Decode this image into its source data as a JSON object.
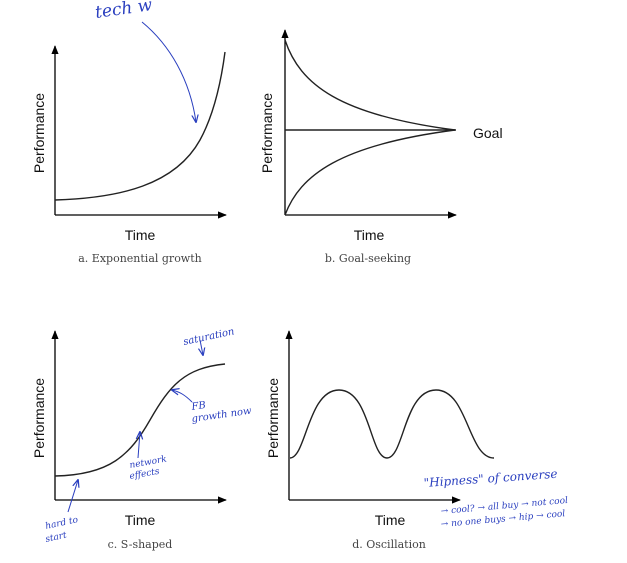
{
  "panels": [
    {
      "ylabel": "Performance",
      "xlabel": "Time",
      "caption": "a. Exponential growth"
    },
    {
      "ylabel": "Performance",
      "xlabel": "Time",
      "caption": "b. Goal-seeking",
      "goal_label": "Goal"
    },
    {
      "ylabel": "Performance",
      "xlabel": "Time",
      "caption": "c. S-shaped"
    },
    {
      "ylabel": "Performance",
      "xlabel": "Time",
      "caption": "d. Oscillation"
    }
  ],
  "annotations": {
    "tech": "tech w",
    "saturation": "saturation",
    "fb_growth": "FB",
    "fb_growth_2": "growth now",
    "network": "network",
    "network_2": "effects",
    "hard_to": "hard to",
    "hard_to_2": "start",
    "hipness": "\"Hipness\" of converse",
    "hip_line1": "→ cool? → all buy → not cool",
    "hip_line2": "→ no one buys → hip → cool"
  },
  "colors": {
    "ink": "#2a3fbf",
    "curve": "#222222"
  }
}
